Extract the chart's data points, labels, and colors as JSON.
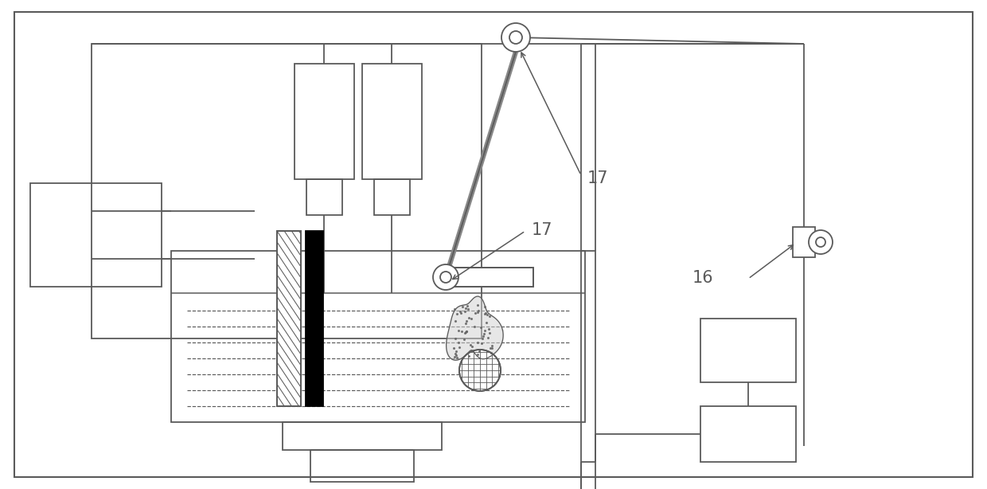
{
  "bg": "#ffffff",
  "lc": "#5a5a5a",
  "lw": 1.3,
  "fig_w": 12.4,
  "fig_h": 6.14,
  "dpi": 100
}
